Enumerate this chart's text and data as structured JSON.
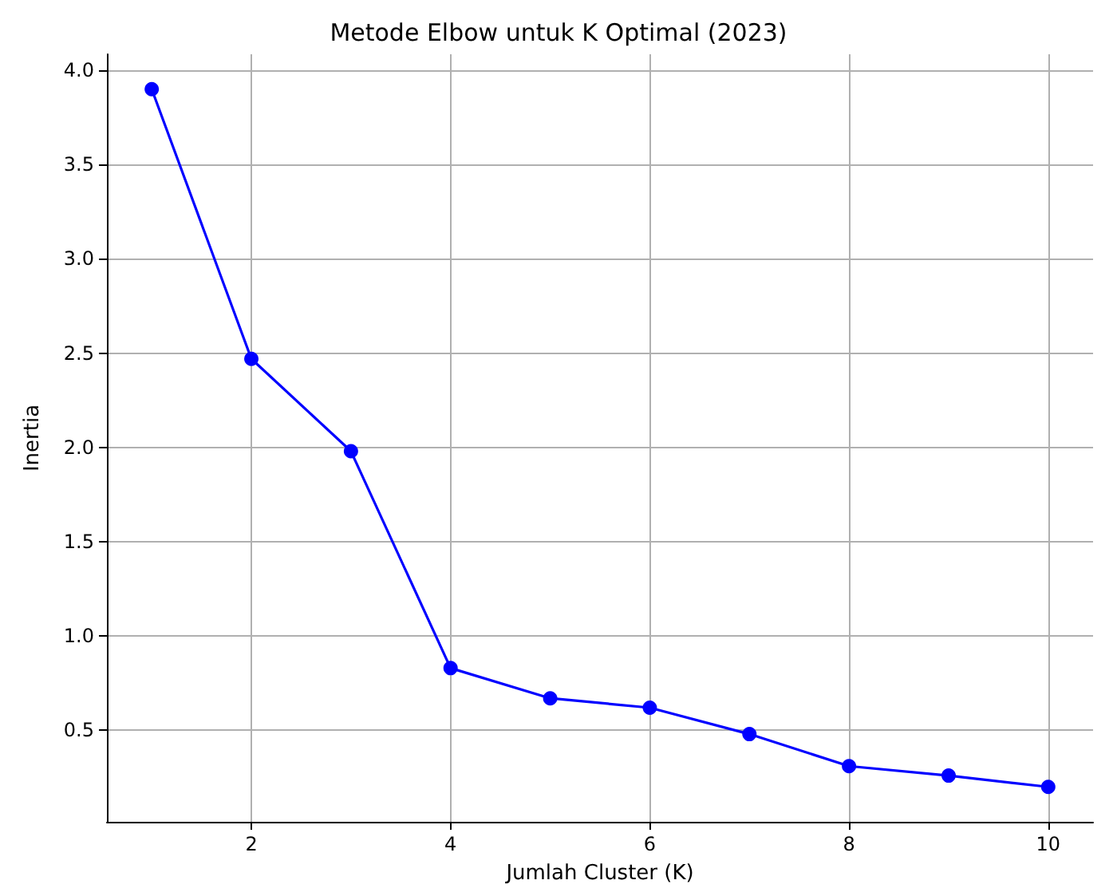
{
  "chart_data": {
    "type": "line",
    "title": "Metode Elbow untuk K Optimal (2023)",
    "xlabel": "Jumlah Cluster (K)",
    "ylabel": "Inertia",
    "x": [
      1,
      2,
      3,
      4,
      5,
      6,
      7,
      8,
      9,
      10
    ],
    "series": [
      {
        "color": "#0000ff",
        "values": [
          3.9,
          2.47,
          1.98,
          0.83,
          0.67,
          0.62,
          0.48,
          0.31,
          0.26,
          0.2
        ]
      }
    ],
    "xlim": [
      0.55,
      10.45
    ],
    "xticks": [
      2,
      4,
      6,
      8,
      10
    ],
    "ylim": [
      0.015,
      4.085
    ],
    "yticks": [
      {
        "value": 0.5,
        "label": "0.5"
      },
      {
        "value": 1,
        "label": "1.0"
      },
      {
        "value": 1.5,
        "label": "1.5"
      },
      {
        "value": 2,
        "label": "2.0"
      },
      {
        "value": 2.5,
        "label": "2.5"
      },
      {
        "value": 3,
        "label": "3.0"
      },
      {
        "value": 3.5,
        "label": "3.5"
      },
      {
        "value": 4,
        "label": "4.0"
      }
    ],
    "grid": true,
    "marker": "circle",
    "line_style": "solid"
  }
}
